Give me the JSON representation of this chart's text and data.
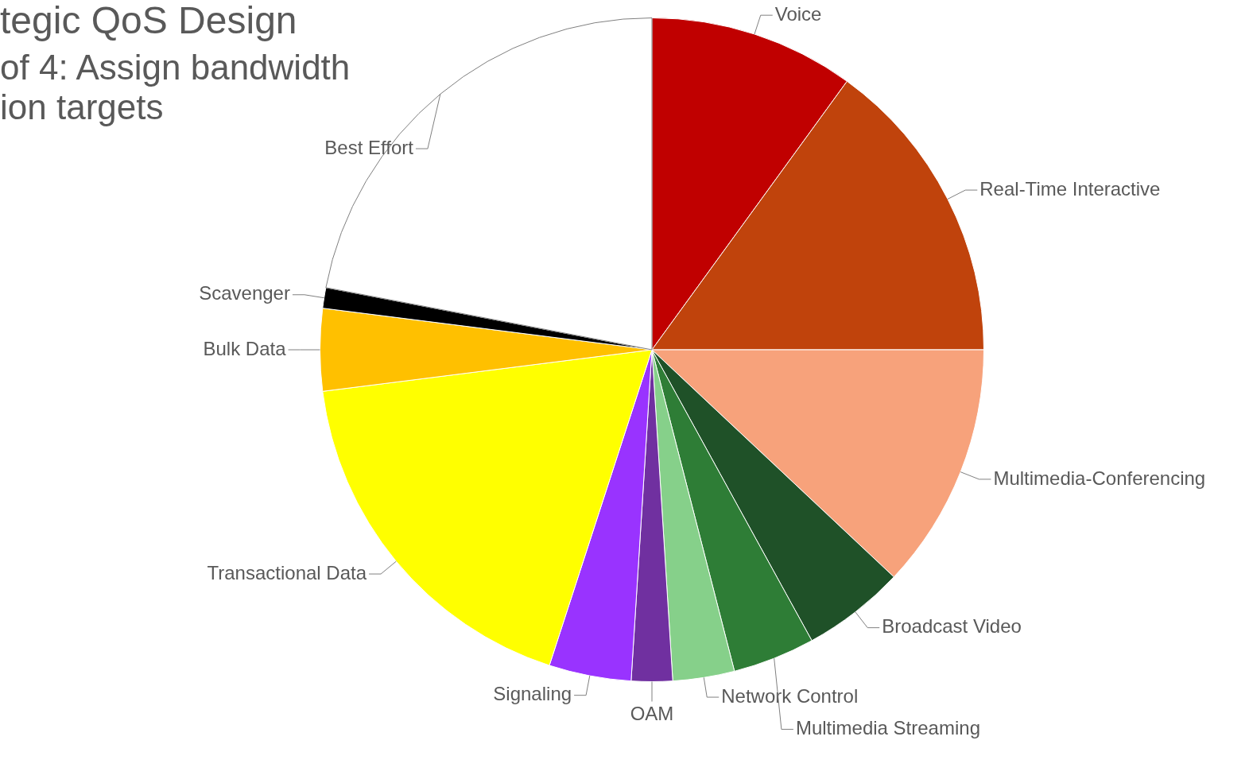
{
  "chart_data": {
    "type": "pie",
    "title": "tegic QoS Design",
    "subtitle": "of 4: Assign bandwidth\nion targets",
    "categories": [
      "Voice",
      "Real-Time Interactive",
      "Multimedia-Conferencing",
      "Broadcast Video",
      "Multimedia Streaming",
      "Network Control",
      "OAM",
      "Signaling",
      "Transactional Data",
      "Bulk Data",
      "Scavenger",
      "Best Effort"
    ],
    "values": [
      10,
      15,
      12,
      5,
      4,
      3,
      2,
      4,
      18,
      4,
      1,
      22
    ],
    "colors": [
      "#c00000",
      "#c0430c",
      "#f7a27b",
      "#1f5128",
      "#2e7d36",
      "#86d08a",
      "#7030a0",
      "#9933ff",
      "#ffff00",
      "#ffc000",
      "#000000",
      "#ffffff"
    ],
    "legend": false
  }
}
